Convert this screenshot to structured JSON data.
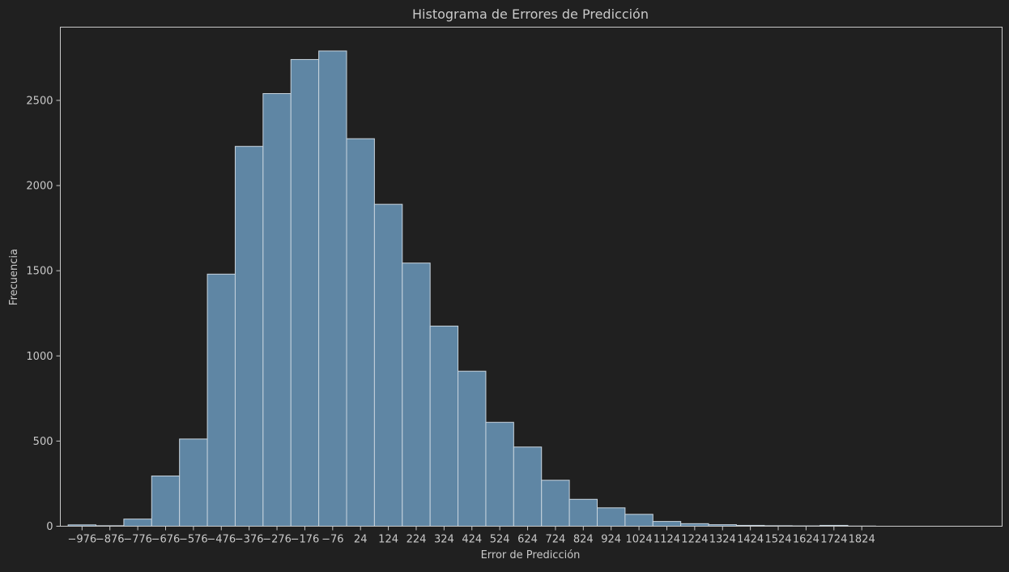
{
  "chart_data": {
    "type": "bar",
    "title": "Histograma de Errores de Predicción",
    "xlabel": "Error de Predicción",
    "ylabel": "Frecuencia",
    "ylim": [
      0,
      2930
    ],
    "xlim": [
      -1054,
      2328
    ],
    "bin_width": 100,
    "bins": [
      {
        "start": -1026,
        "count": 8
      },
      {
        "start": -926,
        "count": 3
      },
      {
        "start": -826,
        "count": 42
      },
      {
        "start": -726,
        "count": 295
      },
      {
        "start": -626,
        "count": 512
      },
      {
        "start": -526,
        "count": 1480
      },
      {
        "start": -426,
        "count": 2230
      },
      {
        "start": -326,
        "count": 2540
      },
      {
        "start": -226,
        "count": 2740
      },
      {
        "start": -126,
        "count": 2790
      },
      {
        "start": -26,
        "count": 2275
      },
      {
        "start": 74,
        "count": 1890
      },
      {
        "start": 174,
        "count": 1545
      },
      {
        "start": 274,
        "count": 1175
      },
      {
        "start": 374,
        "count": 910
      },
      {
        "start": 474,
        "count": 610
      },
      {
        "start": 574,
        "count": 465
      },
      {
        "start": 674,
        "count": 270
      },
      {
        "start": 774,
        "count": 158
      },
      {
        "start": 874,
        "count": 108
      },
      {
        "start": 974,
        "count": 70
      },
      {
        "start": 1074,
        "count": 28
      },
      {
        "start": 1174,
        "count": 15
      },
      {
        "start": 1274,
        "count": 9
      },
      {
        "start": 1374,
        "count": 5
      },
      {
        "start": 1474,
        "count": 3
      },
      {
        "start": 1574,
        "count": 2
      },
      {
        "start": 1674,
        "count": 5
      },
      {
        "start": 1774,
        "count": 1
      }
    ],
    "xticks": [
      -976,
      -876,
      -776,
      -676,
      -576,
      -476,
      -376,
      -276,
      -176,
      -76,
      24,
      124,
      224,
      324,
      424,
      524,
      624,
      724,
      824,
      924,
      1024,
      1124,
      1224,
      1324,
      1424,
      1524,
      1624,
      1724,
      1824
    ],
    "xtick_labels": [
      "−976",
      "−876",
      "−776",
      "−676",
      "−576",
      "−476",
      "−376",
      "−276",
      "−176",
      "−76",
      "24",
      "124",
      "224",
      "324",
      "424",
      "524",
      "624",
      "724",
      "824",
      "924",
      "1024",
      "1124",
      "1224",
      "1324",
      "1424",
      "1524",
      "1624",
      "1724",
      "1824"
    ],
    "yticks": [
      0,
      500,
      1000,
      1500,
      2000,
      2500
    ],
    "ytick_labels": [
      "0",
      "500",
      "1000",
      "1500",
      "2000",
      "2500"
    ],
    "grid": false,
    "legend": "none"
  },
  "colors": {
    "background": "#202020",
    "bar_fill": "#5f86a4",
    "bar_edge": "#c8d4de",
    "axis": "#c9c9c9",
    "text": "#c9c9c9"
  }
}
